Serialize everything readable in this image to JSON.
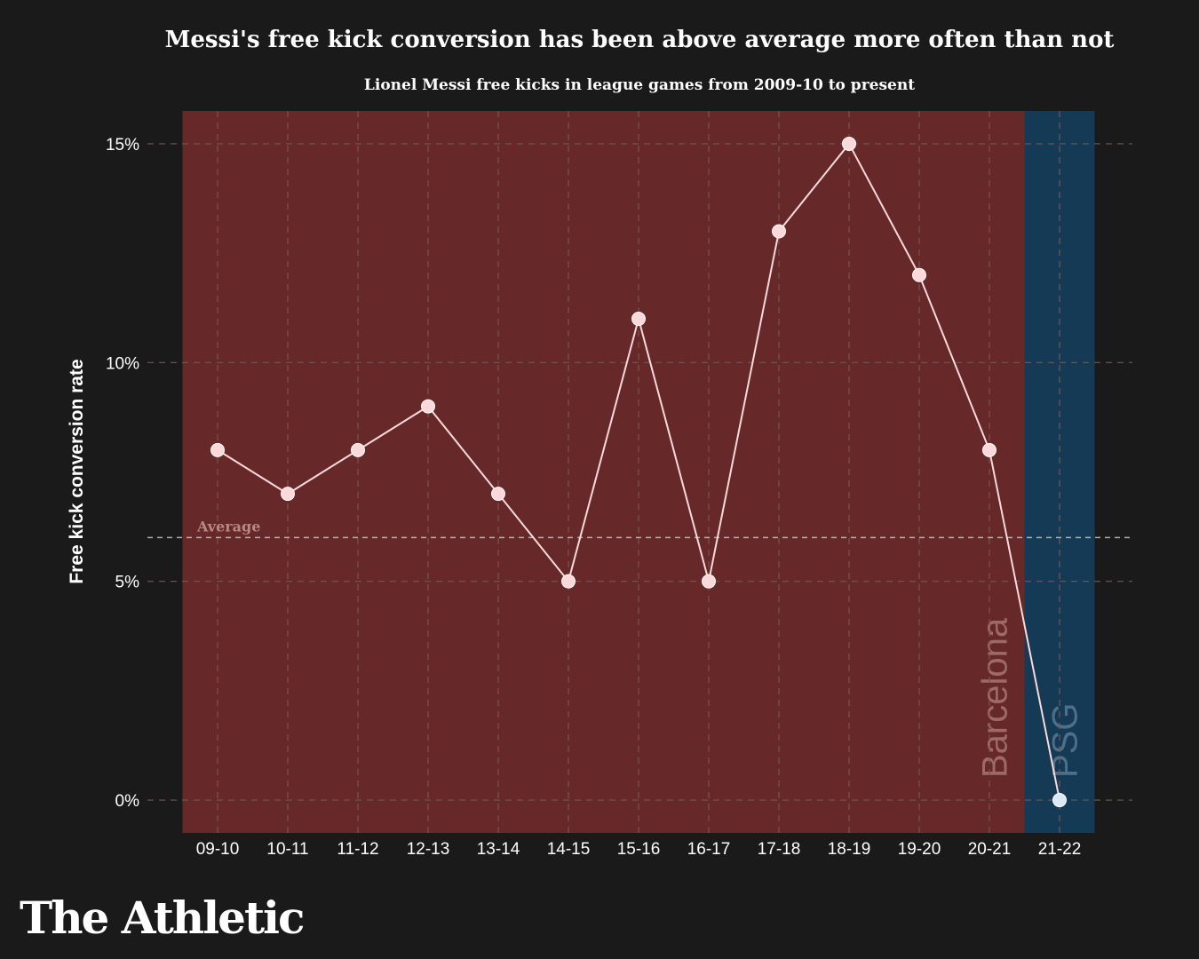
{
  "header": {
    "title": "Messi's free kick conversion has been above average more often than not",
    "subtitle": "Lionel Messi free kicks in league games from 2009-10 to present"
  },
  "brand": {
    "name": "The Athletic"
  },
  "chart_data": {
    "type": "line",
    "categories": [
      "09-10",
      "10-11",
      "11-12",
      "12-13",
      "13-14",
      "14-15",
      "15-16",
      "16-17",
      "17-18",
      "18-19",
      "19-20",
      "20-21",
      "21-22"
    ],
    "values": [
      8,
      7,
      8,
      9,
      7,
      5,
      11,
      5,
      13,
      15,
      12,
      8,
      0
    ],
    "ylabel": "Free kick conversion rate",
    "ylim": [
      -0.75,
      15.75
    ],
    "yticks": [
      0,
      5,
      10,
      15
    ],
    "ytick_labels": [
      "0%",
      "5%",
      "10%",
      "15%"
    ],
    "grid": true,
    "average": {
      "value": 6,
      "label": "Average"
    },
    "regions": [
      {
        "label": "Barcelona",
        "from_index": 0,
        "to_index": 11,
        "color": "#672829",
        "text_color": "#9c6b68"
      },
      {
        "label": "PSG",
        "from_index": 12,
        "to_index": 12,
        "color": "#153a56",
        "text_color": "#4d6f88"
      }
    ],
    "colors": {
      "line": "#fbd9da",
      "marker_barcelona": "#fbd9da",
      "marker_psg": "#dbe8f5",
      "grid": "#7a5450",
      "average_line": "#c9c9c9"
    }
  }
}
